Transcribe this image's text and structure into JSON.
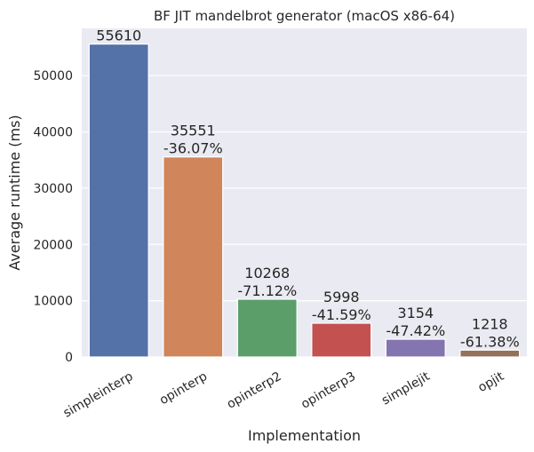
{
  "chart_data": {
    "type": "bar",
    "title": "BF JIT mandelbrot generator (macOS x86-64)",
    "xlabel": "Implementation",
    "ylabel": "Average runtime (ms)",
    "categories": [
      "simpleinterp",
      "opinterp",
      "opinterp2",
      "opinterp3",
      "simplejit",
      "opjit"
    ],
    "values": [
      55610,
      35551,
      10268,
      5998,
      3154,
      1218
    ],
    "change_labels": [
      "",
      "-36.07%",
      "-71.12%",
      "-41.59%",
      "-47.42%",
      "-61.38%"
    ],
    "yticks": [
      0,
      10000,
      20000,
      30000,
      40000,
      50000
    ],
    "ylim": [
      0,
      58391
    ],
    "grid": true,
    "colors": [
      "#5471a8",
      "#d0855a",
      "#5b9e6a",
      "#c2514f",
      "#8474b0",
      "#947259"
    ],
    "background": "#eaeaf2"
  }
}
